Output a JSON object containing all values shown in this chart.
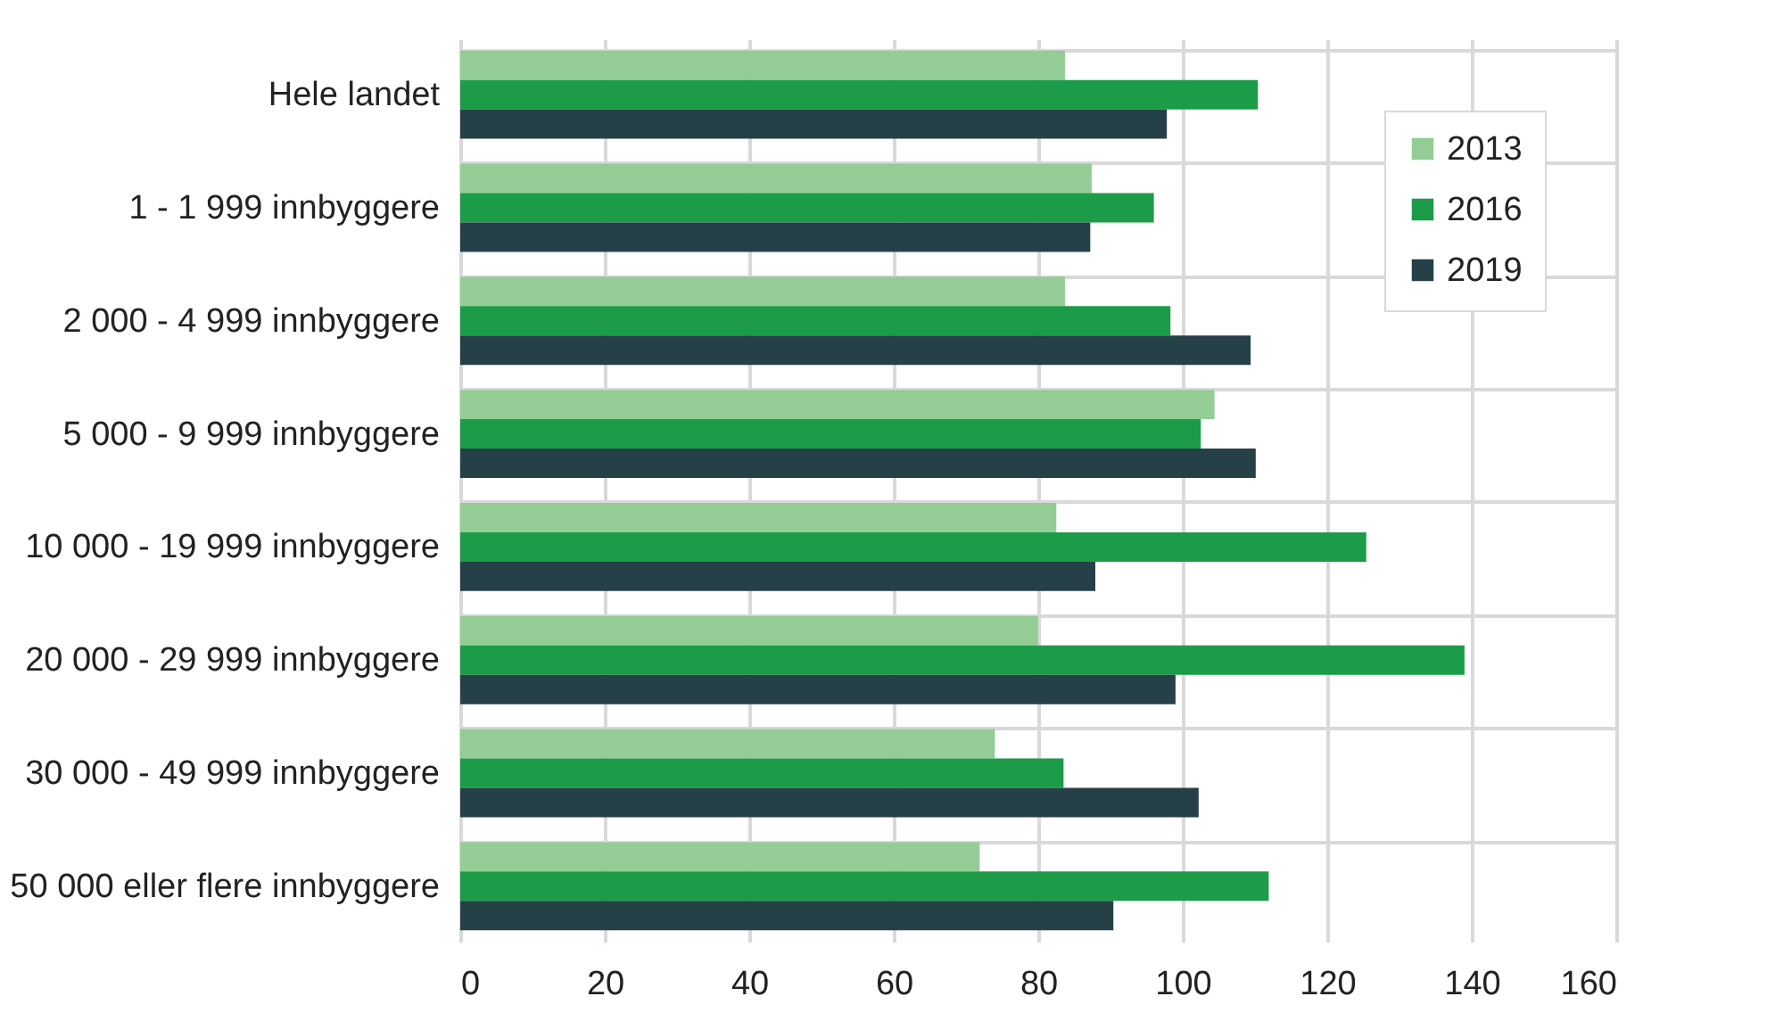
{
  "chart_data": {
    "type": "bar",
    "orientation": "horizontal",
    "categories": [
      "Hele landet",
      "1  -  1 999 innbyggere",
      "2 000  -  4 999 innbyggere",
      "5 000  -  9 999 innbyggere",
      "10 000 - 19 999 innbyggere",
      "20 000 - 29 999 innbyggere",
      "30 000 - 49 999 innbyggere",
      "50 000 eller flere innbyggere"
    ],
    "series": [
      {
        "name": "2013",
        "color": "#93cc94",
        "values": [
          83.7,
          87.4,
          83.7,
          104.4,
          82.5,
          80,
          74,
          71.9
        ]
      },
      {
        "name": "2016",
        "color": "#1c9c48",
        "values": [
          110.4,
          96,
          98.3,
          102.5,
          125.4,
          139,
          83.5,
          111.9
        ]
      },
      {
        "name": "2019",
        "color": "#264047",
        "values": [
          97.8,
          87.2,
          109.4,
          110.1,
          87.9,
          99,
          102.2,
          90.4
        ]
      }
    ],
    "xlim": [
      0,
      160
    ],
    "xticks": [
      0,
      20,
      40,
      60,
      80,
      100,
      120,
      140,
      160
    ],
    "grid": true,
    "legend": "top right"
  }
}
